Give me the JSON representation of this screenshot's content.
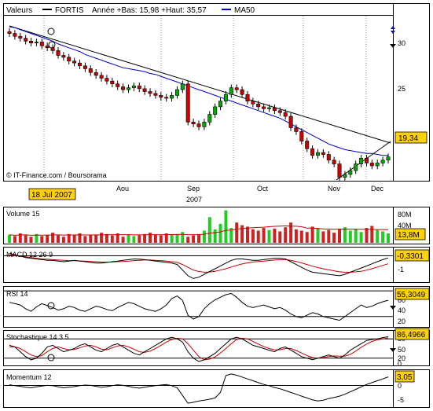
{
  "legend": {
    "series1": "Valeurs",
    "series2": "FORTIS",
    "range_text": "Année +Bas: 15,98 +Haut: 35,57",
    "ma_label": "MA50"
  },
  "copyright": "© IT-Finance.com / Boursorama",
  "date_badge": "18 Jul 2007",
  "year_label": "2007",
  "colors": {
    "candle_up": "#00aa00",
    "candle_down": "#cc0000",
    "ma": "#0000cc",
    "badge": "#ffd200",
    "volume_up": "#22cc22",
    "volume_down": "#cc2222",
    "signal": "#cc0000"
  },
  "chart_data": [
    {
      "type": "candlestick",
      "title": "FORTIS",
      "x_tick_labels": [
        "Aou",
        "Sep",
        "Oct",
        "Nov",
        "Dec"
      ],
      "y_tick_labels": [
        "30",
        "25"
      ],
      "ylim": [
        15.98,
        35.57
      ],
      "last_value": "19,34",
      "ma_label": "MA50",
      "close": [
        32.3,
        32.0,
        31.8,
        31.5,
        31.3,
        31.4,
        31.0,
        30.8,
        30.5,
        30.0,
        29.8,
        29.4,
        29.2,
        28.9,
        28.6,
        28.2,
        27.9,
        27.6,
        27.3,
        27.0,
        26.7,
        26.4,
        26.6,
        26.8,
        26.5,
        26.2,
        26.0,
        25.8,
        25.6,
        25.5,
        25.8,
        26.4,
        27.0,
        23.0,
        22.8,
        22.5,
        23.0,
        23.8,
        24.6,
        25.2,
        25.9,
        26.6,
        26.4,
        25.9,
        25.2,
        24.9,
        24.6,
        24.4,
        24.5,
        24.2,
        24.0,
        23.6,
        22.4,
        22.0,
        21.0,
        20.2,
        19.5,
        19.8,
        19.6,
        19.0,
        18.6,
        17.2,
        17.5,
        17.9,
        18.6,
        19.2,
        18.7,
        18.4,
        18.7,
        19.0,
        19.34
      ],
      "ma50": [
        33.0,
        32.9,
        32.7,
        32.5,
        32.3,
        32.1,
        31.9,
        31.7,
        31.5,
        31.2,
        31.0,
        30.8,
        30.6,
        30.4,
        30.1,
        29.9,
        29.7,
        29.5,
        29.3,
        29.1,
        28.9,
        28.7,
        28.6,
        28.5,
        28.4,
        28.3,
        28.1,
        28.0,
        27.8,
        27.6,
        27.4,
        27.2,
        27.0,
        26.8,
        26.6,
        26.4,
        26.2,
        26.0,
        25.8,
        25.6,
        25.4,
        25.2,
        25.0,
        24.8,
        24.6,
        24.4,
        24.2,
        24.0,
        23.8,
        23.6,
        23.4,
        23.1,
        22.8,
        22.5,
        22.2,
        21.9,
        21.6,
        21.3,
        21.0,
        20.7,
        20.5,
        20.3,
        20.1,
        20.0,
        19.9,
        19.8,
        19.7,
        19.7,
        19.6,
        19.5,
        19.5
      ]
    },
    {
      "type": "bar",
      "title": "Volume 15",
      "y_tick_labels": [
        "80M",
        "40M"
      ],
      "last_value": "13,8M",
      "values": [
        12,
        10,
        14,
        11,
        9,
        13,
        10,
        12,
        15,
        11,
        9,
        13,
        12,
        14,
        10,
        11,
        12,
        15,
        13,
        11,
        14,
        9,
        12,
        10,
        11,
        13,
        15,
        12,
        11,
        14,
        12,
        13,
        16,
        9,
        11,
        13,
        18,
        38,
        20,
        28,
        48,
        22,
        30,
        26,
        24,
        20,
        18,
        22,
        19,
        21,
        17,
        23,
        30,
        20,
        18,
        16,
        24,
        22,
        17,
        19,
        15,
        21,
        23,
        18,
        20,
        16,
        22,
        25,
        19,
        17,
        14
      ]
    },
    {
      "type": "line",
      "title": "MACD 12 26 9",
      "y_tick_labels": [
        "-1"
      ],
      "last_value": "-0,3301",
      "macd": [
        0.0,
        -0.1,
        -0.2,
        -0.3,
        -0.35,
        -0.4,
        -0.45,
        -0.5,
        -0.5,
        -0.55,
        -0.6,
        -0.55,
        -0.5,
        -0.55,
        -0.6,
        -0.65,
        -0.7,
        -0.7,
        -0.65,
        -0.6,
        -0.55,
        -0.5,
        -0.45,
        -0.4,
        -0.42,
        -0.45,
        -0.5,
        -0.55,
        -0.6,
        -0.65,
        -0.7,
        -0.8,
        -1.2,
        -1.6,
        -1.8,
        -1.7,
        -1.5,
        -1.3,
        -1.1,
        -0.9,
        -0.7,
        -0.5,
        -0.4,
        -0.4,
        -0.45,
        -0.5,
        -0.5,
        -0.45,
        -0.4,
        -0.35,
        -0.35,
        -0.4,
        -0.6,
        -0.8,
        -1.0,
        -1.2,
        -1.35,
        -1.4,
        -1.45,
        -1.5,
        -1.55,
        -1.6,
        -1.5,
        -1.35,
        -1.2,
        -1.05,
        -0.9,
        -0.75,
        -0.6,
        -0.45,
        -0.33
      ],
      "signal": [
        -0.1,
        -0.15,
        -0.2,
        -0.25,
        -0.3,
        -0.35,
        -0.4,
        -0.42,
        -0.45,
        -0.48,
        -0.5,
        -0.52,
        -0.53,
        -0.54,
        -0.56,
        -0.58,
        -0.6,
        -0.62,
        -0.63,
        -0.62,
        -0.6,
        -0.58,
        -0.55,
        -0.52,
        -0.5,
        -0.48,
        -0.48,
        -0.5,
        -0.52,
        -0.55,
        -0.6,
        -0.65,
        -0.8,
        -1.0,
        -1.2,
        -1.3,
        -1.35,
        -1.33,
        -1.28,
        -1.2,
        -1.1,
        -0.98,
        -0.86,
        -0.76,
        -0.68,
        -0.62,
        -0.58,
        -0.55,
        -0.52,
        -0.48,
        -0.45,
        -0.45,
        -0.5,
        -0.58,
        -0.68,
        -0.8,
        -0.92,
        -1.02,
        -1.1,
        -1.18,
        -1.25,
        -1.32,
        -1.35,
        -1.35,
        -1.32,
        -1.28,
        -1.2,
        -1.1,
        -0.98,
        -0.86,
        -0.75
      ]
    },
    {
      "type": "line",
      "title": "RSI 14",
      "y_tick_labels": [
        "60",
        "40",
        "20"
      ],
      "last_value": "55,3049",
      "ylim": [
        15,
        75
      ],
      "values": [
        52,
        50,
        48,
        42,
        38,
        45,
        50,
        47,
        44,
        40,
        42,
        46,
        44,
        40,
        38,
        42,
        46,
        44,
        41,
        39,
        44,
        48,
        52,
        50,
        46,
        42,
        40,
        38,
        42,
        48,
        58,
        62,
        55,
        32,
        26,
        30,
        42,
        50,
        56,
        60,
        64,
        66,
        60,
        52,
        46,
        44,
        46,
        48,
        45,
        42,
        44,
        40,
        34,
        30,
        28,
        32,
        36,
        34,
        30,
        28,
        26,
        24,
        30,
        36,
        42,
        48,
        44,
        46,
        50,
        53,
        55.3
      ]
    },
    {
      "type": "line",
      "title": "Stochastique 14 3 5",
      "y_tick_labels": [
        "80",
        "50",
        "20",
        "0"
      ],
      "last_value": "86,4966",
      "ylim": [
        0,
        100
      ],
      "k": [
        60,
        55,
        40,
        25,
        15,
        20,
        35,
        55,
        60,
        50,
        40,
        45,
        50,
        60,
        65,
        55,
        45,
        40,
        50,
        60,
        65,
        55,
        45,
        35,
        30,
        40,
        50,
        60,
        70,
        80,
        85,
        80,
        70,
        40,
        20,
        10,
        15,
        25,
        35,
        50,
        65,
        80,
        85,
        80,
        70,
        60,
        55,
        50,
        45,
        40,
        50,
        55,
        45,
        35,
        25,
        20,
        15,
        20,
        25,
        30,
        25,
        20,
        30,
        45,
        55,
        65,
        75,
        78,
        80,
        84,
        86.5
      ],
      "d": [
        55,
        55,
        50,
        40,
        30,
        25,
        28,
        40,
        50,
        55,
        50,
        46,
        47,
        52,
        58,
        60,
        55,
        48,
        46,
        52,
        58,
        60,
        55,
        48,
        40,
        38,
        42,
        50,
        60,
        70,
        78,
        82,
        80,
        65,
        45,
        25,
        15,
        17,
        24,
        36,
        50,
        65,
        78,
        82,
        80,
        72,
        64,
        56,
        50,
        46,
        46,
        50,
        50,
        44,
        36,
        28,
        22,
        20,
        22,
        25,
        27,
        26,
        26,
        32,
        42,
        54,
        64,
        72,
        77,
        80,
        83
      ]
    },
    {
      "type": "line",
      "title": "Momentum 12",
      "y_tick_labels": [
        "0",
        "-5"
      ],
      "last_value": "3,05",
      "ylim": [
        -6.5,
        5
      ],
      "values": [
        0.5,
        0.2,
        0.0,
        -0.3,
        -0.5,
        -0.2,
        0.1,
        0.3,
        0.2,
        -0.2,
        -0.5,
        -0.3,
        -0.1,
        0.2,
        0.4,
        0.3,
        0.0,
        -0.3,
        -0.1,
        0.2,
        0.5,
        0.3,
        0.0,
        -0.4,
        -0.6,
        -0.3,
        0.0,
        0.2,
        0.4,
        0.6,
        0.2,
        -0.5,
        -3.0,
        -5.5,
        -5.2,
        -4.8,
        -4.5,
        -4.2,
        -3.8,
        -2.0,
        3.5,
        4.0,
        3.6,
        3.0,
        2.4,
        1.8,
        1.2,
        0.6,
        0.2,
        -0.4,
        -0.8,
        -1.4,
        -2.0,
        -2.6,
        -3.2,
        -3.8,
        -4.4,
        -4.8,
        -4.5,
        -4.0,
        -3.6,
        -3.2,
        -2.6,
        -1.8,
        -1.0,
        -0.2,
        0.6,
        1.2,
        1.8,
        2.4,
        3.05
      ]
    }
  ]
}
